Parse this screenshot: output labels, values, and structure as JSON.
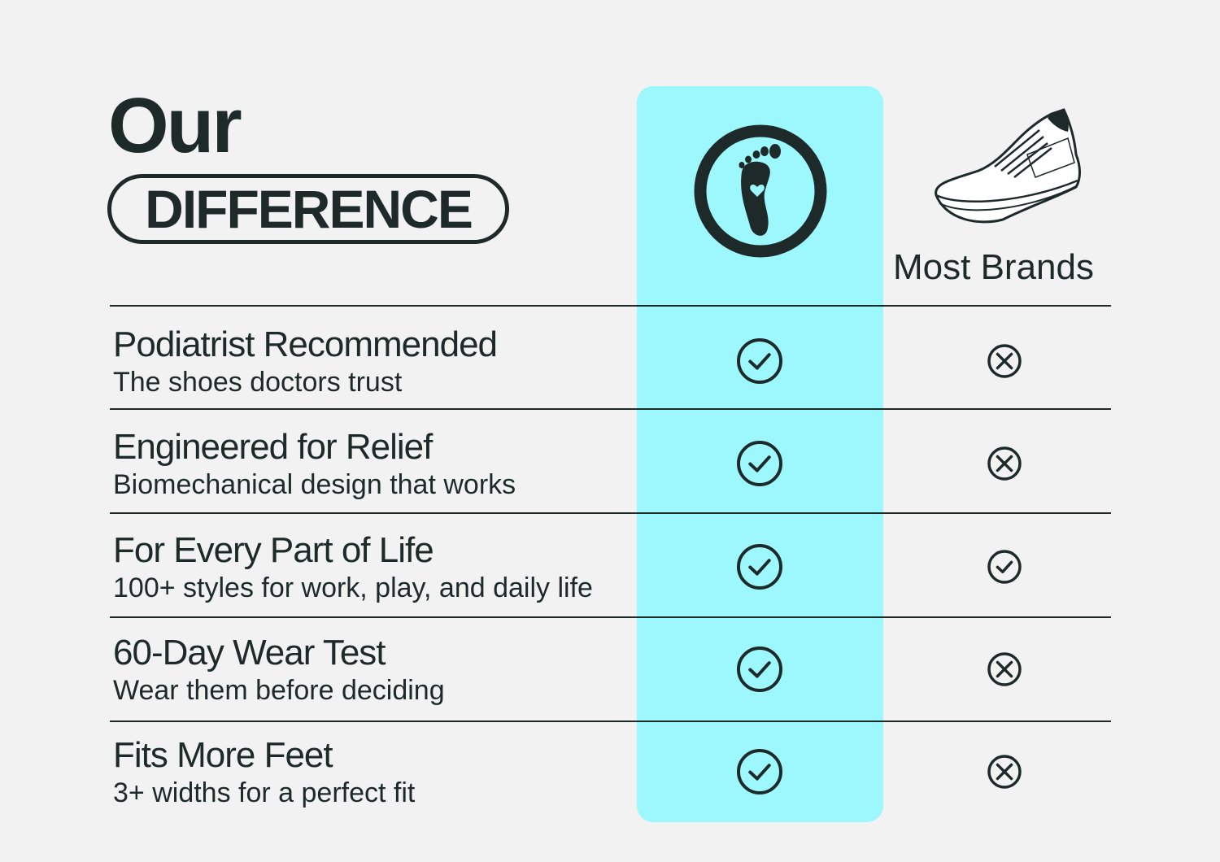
{
  "heading": {
    "line1": "Our",
    "line2": "DIFFERENCE"
  },
  "columns": {
    "ours_icon": "foot-heart-logo-icon",
    "theirs_icon": "sneaker-icon",
    "theirs_label": "Most Brands"
  },
  "colors": {
    "background": "#f2f2f2",
    "highlight": "#9cf8fc",
    "ink": "#1e2a2a"
  },
  "rows": [
    {
      "title": "Podiatrist Recommended",
      "subtitle": "The shoes doctors trust",
      "ours": "check",
      "theirs": "cross"
    },
    {
      "title": "Engineered for Relief",
      "subtitle": "Biomechanical design that works",
      "ours": "check",
      "theirs": "cross"
    },
    {
      "title": "For Every Part of Life",
      "subtitle": "100+ styles for work, play, and daily life",
      "ours": "check",
      "theirs": "check"
    },
    {
      "title": "60-Day Wear Test",
      "subtitle": "Wear them before deciding",
      "ours": "check",
      "theirs": "cross"
    },
    {
      "title": "Fits More Feet",
      "subtitle": "3+ widths for a perfect fit",
      "ours": "check",
      "theirs": "cross"
    }
  ]
}
